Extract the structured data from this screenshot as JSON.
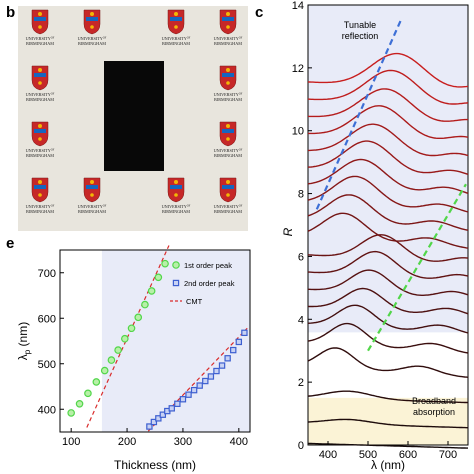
{
  "panel_b": {
    "letter": "b",
    "logo_text_line1": "UNIVERSITY",
    "logo_text_of": "OF",
    "logo_text_line2": "BIRMINGHAM",
    "colors": {
      "background": "#e8e5dd",
      "center_square": "#080808",
      "crest_red": "#c62828",
      "crest_blue": "#1565c0",
      "crest_gold": "#f2b705"
    }
  },
  "panel_c": {
    "letter": "c",
    "annotation_top": [
      "Tunable",
      "reflection"
    ],
    "annotation_bottom": [
      "Broadband",
      "absorption"
    ],
    "colors": {
      "reflection_band": "#e8ebf8",
      "absorption_band": "#fbf3d6",
      "blue_dash": "#3d6fd6",
      "green_dash": "#52d64a"
    }
  },
  "panel_e": {
    "letter": "e",
    "colors": {
      "shaded_region": "#e8ebf8",
      "first_order": "#52d64a",
      "second_order": "#3d5fd0",
      "cmt": "#d92b2b"
    }
  },
  "chart_data": [
    {
      "type": "line",
      "panel": "c",
      "xlabel": "λ (nm)",
      "ylabel": "R",
      "xlim": [
        350,
        750
      ],
      "ylim": [
        0,
        14
      ],
      "xticks": [
        400,
        500,
        600,
        700
      ],
      "yticks": [
        0,
        2,
        4,
        6,
        8,
        10,
        12,
        14
      ],
      "grid": false,
      "series_count": 20,
      "offsets": [
        0.05,
        0.7,
        1.5,
        2.5,
        3.25,
        3.85,
        4.4,
        4.95,
        5.5,
        6.05,
        6.6,
        7.15,
        7.7,
        8.25,
        8.8,
        9.35,
        9.9,
        10.45,
        11.0,
        11.55
      ],
      "peak_positions_nm": [
        null,
        null,
        null,
        420,
        450,
        470,
        490,
        505,
        520,
        535,
        440,
        455,
        470,
        485,
        500,
        515,
        530,
        545,
        560,
        575
      ],
      "peak_amplitudes": [
        0.0,
        0.15,
        0.25,
        0.65,
        0.7,
        0.7,
        0.7,
        0.75,
        0.8,
        0.8,
        0.85,
        0.9,
        0.95,
        0.95,
        1.0,
        1.0,
        1.05,
        1.05,
        1.1,
        1.1
      ],
      "guide_lines": [
        {
          "name": "",
          "style": "blue-dashed",
          "x": [
            372,
            585
          ],
          "y": [
            7.5,
            13.6
          ]
        },
        {
          "name": "",
          "style": "green-dashed",
          "x": [
            500,
            745
          ],
          "y": [
            3.0,
            8.3
          ]
        }
      ],
      "annotations": [
        "Tunable reflection",
        "Broadband absorption"
      ]
    },
    {
      "type": "scatter",
      "panel": "e",
      "xlabel": "Thickness (nm)",
      "ylabel": "λp (nm)",
      "xlim": [
        80,
        420
      ],
      "ylim": [
        350,
        750
      ],
      "xticks": [
        100,
        200,
        300,
        400
      ],
      "yticks": [
        400,
        500,
        600,
        700
      ],
      "grid": false,
      "legend_placement": "top-right",
      "series": [
        {
          "name": "1st order peak",
          "marker": "circle",
          "x": [
            100,
            115,
            130,
            145,
            160,
            172,
            184,
            196,
            208,
            220,
            232,
            244,
            256,
            268
          ],
          "y": [
            392,
            412,
            435,
            460,
            485,
            508,
            530,
            555,
            578,
            602,
            630,
            660,
            690,
            720
          ]
        },
        {
          "name": "2nd order peak",
          "marker": "square",
          "x": [
            240,
            248,
            256,
            264,
            272,
            280,
            290,
            300,
            310,
            320,
            330,
            340,
            350,
            360,
            370,
            380,
            390,
            400,
            410
          ],
          "y": [
            362,
            372,
            380,
            388,
            396,
            402,
            412,
            422,
            432,
            442,
            452,
            462,
            472,
            484,
            496,
            512,
            530,
            548,
            568
          ]
        },
        {
          "name": "CMT",
          "style": "dashed-line",
          "x": [
            128,
            275
          ],
          "y": [
            360,
            760
          ]
        }
      ]
    }
  ]
}
